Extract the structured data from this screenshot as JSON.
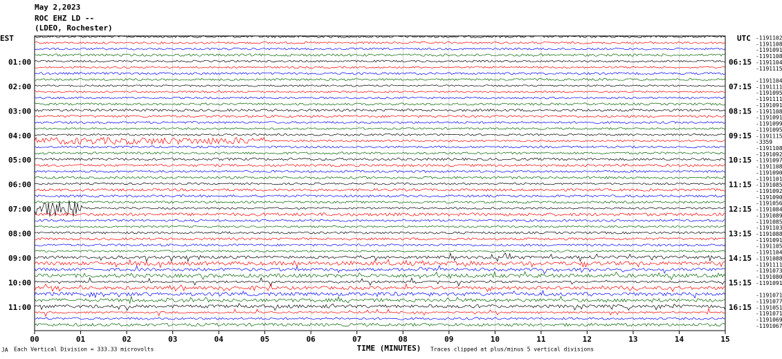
{
  "header": {
    "date": "May 2,2023",
    "station": "ROC EHZ LD --",
    "network": "(LDEO, Rochester)"
  },
  "left_labels": {
    "title": "EST",
    "hours": [
      "01:00",
      "02:00",
      "03:00",
      "04:00",
      "05:00",
      "06:00",
      "07:00",
      "08:00",
      "09:00",
      "10:00",
      "11:00"
    ]
  },
  "right_labels": {
    "title": "UTC",
    "hours": [
      "06:15",
      "07:15",
      "08:15",
      "09:15",
      "10:15",
      "11:15",
      "12:15",
      "13:15",
      "14:15",
      "15:15",
      "16:15"
    ]
  },
  "trace_offsets": [
    "-1191102",
    "-1191108",
    "-1191091",
    "-1191108",
    "-1191104",
    "-1191115",
    null,
    "-1191104",
    "-1191111",
    "-1191095",
    "-1191111",
    "-1191091",
    "-1191108",
    "-1191091",
    "-1191099",
    "-1191095",
    "-1191115",
    "-3359",
    "-1191108",
    "-1191092",
    "-1191097",
    "-1191108",
    "-1191090",
    "-1191101",
    "-1191085",
    "-1191092",
    "-1191090",
    "-1191056",
    "-1191084",
    "-1191089",
    "-1191085",
    "-1191103",
    "-1191088",
    "-1191091",
    "-1191105",
    "-1191104",
    "-1191088",
    "-1191111",
    "-1191073",
    "-1191080",
    "-1191091",
    null,
    "-1191071",
    "-1191077",
    "-1191051",
    "-1191071",
    "-1191069",
    "-1191067"
  ],
  "x_axis": {
    "ticks": [
      "00",
      "01",
      "02",
      "03",
      "04",
      "05",
      "06",
      "07",
      "08",
      "09",
      "10",
      "11",
      "12",
      "13",
      "14",
      "15"
    ],
    "title": "TIME (MINUTES)"
  },
  "footer": {
    "mark": "JA",
    "scale_note": "Each Vertical Division =  333.33 microvolts",
    "clip_note": "Traces clipped at plus/minus 5 vertical divisions"
  }
}
